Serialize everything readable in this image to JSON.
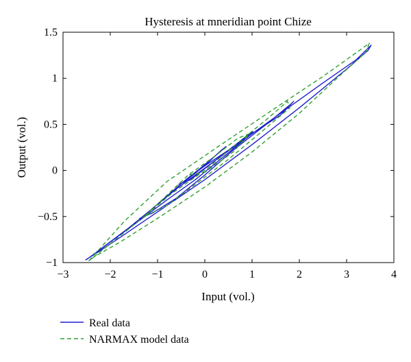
{
  "chart_data": {
    "type": "line",
    "title": "Hysteresis at mneridian point Chize",
    "xlabel": "Input (vol.)",
    "ylabel": "Output (vol.)",
    "xlim": [
      -3,
      4
    ],
    "ylim": [
      -1,
      1.5
    ],
    "xticks": [
      -3,
      -2,
      -1,
      0,
      1,
      2,
      3,
      4
    ],
    "yticks": [
      -1,
      -0.5,
      0,
      0.5,
      1,
      1.5
    ],
    "xtick_labels": [
      "−3",
      "−2",
      "−1",
      "0",
      "1",
      "2",
      "3",
      "4"
    ],
    "ytick_labels": [
      "−1",
      "−0.5",
      "0",
      "0.5",
      "1",
      "1.5"
    ],
    "grid": false,
    "legend": "bottom-left, outside plot",
    "series": [
      {
        "name": "Real data",
        "color": "#1f1fcc",
        "dash": "solid",
        "x": [
          -2.48,
          -1.6,
          -0.6,
          0.6,
          1.6,
          2.5,
          3.2,
          3.52,
          3.45,
          3.0,
          2.0,
          1.0,
          0.0,
          -1.0,
          -1.8,
          -2.3,
          -2.52,
          -2.48,
          -1.32,
          -0.8,
          -0.2,
          0.4,
          1.0,
          1.6,
          1.88,
          1.82,
          1.3,
          0.6,
          0.0,
          -0.6,
          -1.1,
          -1.38,
          -1.35,
          -0.4,
          0.0,
          0.5,
          0.9,
          1.02,
          0.7,
          0.2,
          -0.3,
          -0.55,
          -0.42,
          -0.2,
          0.1,
          0.35,
          0.45,
          0.2,
          -0.15,
          -0.35,
          -0.4
        ],
        "y": [
          -0.96,
          -0.62,
          -0.2,
          0.25,
          0.62,
          0.95,
          1.2,
          1.36,
          1.3,
          1.1,
          0.68,
          0.28,
          -0.1,
          -0.45,
          -0.73,
          -0.9,
          -0.97,
          -0.96,
          -0.52,
          -0.32,
          -0.1,
          0.15,
          0.4,
          0.6,
          0.75,
          0.72,
          0.5,
          0.22,
          -0.05,
          -0.3,
          -0.46,
          -0.52,
          -0.52,
          -0.1,
          0.05,
          0.22,
          0.38,
          0.42,
          0.3,
          0.1,
          -0.1,
          -0.15,
          -0.12,
          -0.03,
          0.1,
          0.22,
          0.26,
          0.15,
          0.0,
          -0.08,
          -0.1
        ]
      },
      {
        "name": "NARMAX model data",
        "color": "#2e9e2e",
        "dash": "dashed",
        "x": [
          -2.45,
          -1.7,
          -0.8,
          0.4,
          1.5,
          2.5,
          3.1,
          3.48,
          3.4,
          2.9,
          2.0,
          1.0,
          0.0,
          -1.0,
          -1.8,
          -2.35,
          -2.45,
          -1.28,
          -0.7,
          0.0,
          0.7,
          1.3,
          1.75,
          1.8,
          1.2,
          0.5,
          -0.2,
          -0.8,
          -1.28,
          -0.35,
          0.2,
          0.7,
          0.95,
          0.6,
          0.0,
          -0.35
        ],
        "y": [
          -0.98,
          -0.55,
          -0.12,
          0.3,
          0.68,
          1.02,
          1.24,
          1.38,
          1.28,
          1.05,
          0.62,
          0.2,
          -0.18,
          -0.52,
          -0.78,
          -0.94,
          -0.98,
          -0.5,
          -0.25,
          0.0,
          0.3,
          0.55,
          0.75,
          0.68,
          0.42,
          0.12,
          -0.15,
          -0.38,
          -0.5,
          -0.05,
          0.15,
          0.35,
          0.4,
          0.2,
          -0.02,
          -0.05
        ]
      }
    ]
  }
}
